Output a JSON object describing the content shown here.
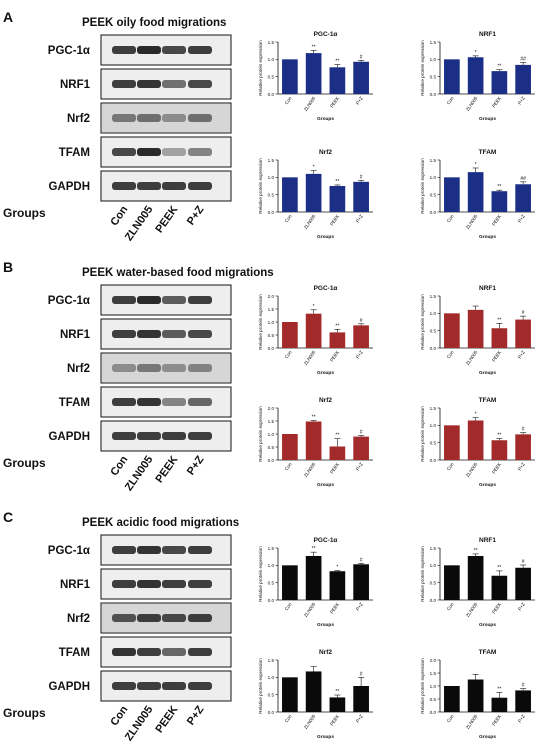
{
  "panels": [
    {
      "letter": "A",
      "title": "PEEK oily food migrations",
      "color": "#1c2f87",
      "blot_rows": [
        "PGC-1α",
        "NRF1",
        "Nrf2",
        "TFAM",
        "GAPDH"
      ],
      "groups_label": "Groups",
      "lanes": [
        "Con",
        "ZLN005",
        "PEEK",
        "P+Z"
      ]
    },
    {
      "letter": "B",
      "title": "PEEK water-based food migrations",
      "color": "#a32a2a",
      "blot_rows": [
        "PGC-1α",
        "NRF1",
        "Nrf2",
        "TFAM",
        "GAPDH"
      ],
      "groups_label": "Groups",
      "lanes": [
        "Con",
        "ZLN005",
        "PEEK",
        "P+Z"
      ]
    },
    {
      "letter": "C",
      "title": "PEEK acidic food migrations",
      "color": "#0a0a0a",
      "blot_rows": [
        "PGC-1α",
        "NRF1",
        "Nrf2",
        "TFAM",
        "GAPDH"
      ],
      "groups_label": "Groups",
      "lanes": [
        "Con",
        "ZLN005",
        "PEEK",
        "P+Z"
      ]
    }
  ],
  "chart_data": [
    {
      "panel": "A",
      "type": "bar",
      "title": "PGC-1α",
      "categories": [
        "Con",
        "ZLN005",
        "PEEK",
        "P+Z"
      ],
      "values": [
        1.0,
        1.18,
        0.77,
        0.93
      ],
      "errors": [
        0.0,
        0.08,
        0.08,
        0.04
      ],
      "marks": [
        "",
        "**",
        "**",
        "#"
      ],
      "xlabel": "Groups",
      "ylabel": "Relative protein expression",
      "ylim": [
        0,
        1.5
      ],
      "yticks": [
        "0.0",
        "0.5",
        "1.0",
        "1.5"
      ],
      "color": "#1c2f87"
    },
    {
      "panel": "A",
      "type": "bar",
      "title": "NRF1",
      "categories": [
        "Con",
        "ZLN005",
        "PEEK",
        "P+Z"
      ],
      "values": [
        1.0,
        1.06,
        0.66,
        0.84
      ],
      "errors": [
        0.0,
        0.04,
        0.04,
        0.07
      ],
      "marks": [
        "",
        "*",
        "**",
        "##"
      ],
      "xlabel": "Groups",
      "ylabel": "Relative protein expression",
      "ylim": [
        0,
        1.5
      ],
      "yticks": [
        "0.0",
        "0.5",
        "1.0",
        "1.5"
      ],
      "color": "#1c2f87"
    },
    {
      "panel": "A",
      "type": "bar",
      "title": "Nrf2",
      "categories": [
        "Con",
        "ZLN005",
        "PEEK",
        "P+Z"
      ],
      "values": [
        1.0,
        1.1,
        0.75,
        0.87
      ],
      "errors": [
        0.0,
        0.09,
        0.03,
        0.04
      ],
      "marks": [
        "",
        "*",
        "**",
        "#"
      ],
      "xlabel": "Groups",
      "ylabel": "Relative protein expression",
      "ylim": [
        0,
        1.5
      ],
      "yticks": [
        "0.0",
        "0.5",
        "1.0",
        "1.5"
      ],
      "color": "#1c2f87"
    },
    {
      "panel": "A",
      "type": "bar",
      "title": "TFAM",
      "categories": [
        "Con",
        "ZLN005",
        "PEEK",
        "P+Z"
      ],
      "values": [
        1.0,
        1.15,
        0.6,
        0.8
      ],
      "errors": [
        0.0,
        0.12,
        0.03,
        0.07
      ],
      "marks": [
        "",
        "*",
        "**",
        "##"
      ],
      "xlabel": "Groups",
      "ylabel": "Relative protein expression",
      "ylim": [
        0,
        1.5
      ],
      "yticks": [
        "0.0",
        "0.5",
        "1.0",
        "1.5"
      ],
      "color": "#1c2f87"
    },
    {
      "panel": "B",
      "type": "bar",
      "title": "PGC-1α",
      "categories": [
        "Con",
        "ZLN005",
        "PEEK",
        "P+Z"
      ],
      "values": [
        1.0,
        1.32,
        0.6,
        0.87
      ],
      "errors": [
        0.0,
        0.15,
        0.12,
        0.06
      ],
      "marks": [
        "",
        "*",
        "**",
        "#"
      ],
      "xlabel": "Groups",
      "ylabel": "Relative protein expression",
      "ylim": [
        0,
        2.0
      ],
      "yticks": [
        "0.0",
        "0.5",
        "1.0",
        "1.5",
        "2.0"
      ],
      "color": "#a32a2a"
    },
    {
      "panel": "B",
      "type": "bar",
      "title": "NRF1",
      "categories": [
        "Con",
        "ZLN005",
        "PEEK",
        "P+Z"
      ],
      "values": [
        1.0,
        1.1,
        0.57,
        0.82
      ],
      "errors": [
        0.0,
        0.11,
        0.14,
        0.1
      ],
      "marks": [
        "",
        "",
        "**",
        "#"
      ],
      "xlabel": "Groups",
      "ylabel": "Relative protein expression",
      "ylim": [
        0,
        1.5
      ],
      "yticks": [
        "0.0",
        "0.5",
        "1.0",
        "1.5"
      ],
      "color": "#a32a2a"
    },
    {
      "panel": "B",
      "type": "bar",
      "title": "Nrf2",
      "categories": [
        "Con",
        "ZLN005",
        "PEEK",
        "P+Z"
      ],
      "values": [
        1.0,
        1.48,
        0.52,
        0.9
      ],
      "errors": [
        0.0,
        0.04,
        0.3,
        0.04
      ],
      "marks": [
        "",
        "**",
        "**",
        "#"
      ],
      "xlabel": "Groups",
      "ylabel": "Relative protein expression",
      "ylim": [
        0,
        2.0
      ],
      "yticks": [
        "0.0",
        "0.5",
        "1.0",
        "1.5",
        "2.0"
      ],
      "color": "#a32a2a"
    },
    {
      "panel": "B",
      "type": "bar",
      "title": "TFAM",
      "categories": [
        "Con",
        "ZLN005",
        "PEEK",
        "P+Z"
      ],
      "values": [
        1.0,
        1.14,
        0.57,
        0.74
      ],
      "errors": [
        0.0,
        0.08,
        0.05,
        0.05
      ],
      "marks": [
        "",
        "*",
        "**",
        "#"
      ],
      "xlabel": "Groups",
      "ylabel": "Relative protein expression",
      "ylim": [
        0,
        1.5
      ],
      "yticks": [
        "0.0",
        "0.5",
        "1.0",
        "1.5"
      ],
      "color": "#a32a2a"
    },
    {
      "panel": "C",
      "type": "bar",
      "title": "PGC-1α",
      "categories": [
        "Con",
        "ZLN005",
        "PEEK",
        "P+Z"
      ],
      "values": [
        1.0,
        1.27,
        0.83,
        1.03
      ],
      "errors": [
        0.0,
        0.11,
        0.02,
        0.03
      ],
      "marks": [
        "",
        "**",
        "*",
        "#"
      ],
      "xlabel": "Groups",
      "ylabel": "Relative protein expression",
      "ylim": [
        0,
        1.5
      ],
      "yticks": [
        "0.0",
        "0.5",
        "1.0",
        "1.5"
      ],
      "color": "#0a0a0a"
    },
    {
      "panel": "C",
      "type": "bar",
      "title": "NRF1",
      "categories": [
        "Con",
        "ZLN005",
        "PEEK",
        "P+Z"
      ],
      "values": [
        1.0,
        1.27,
        0.7,
        0.93
      ],
      "errors": [
        0.0,
        0.06,
        0.14,
        0.08
      ],
      "marks": [
        "",
        "**",
        "**",
        "#"
      ],
      "xlabel": "Groups",
      "ylabel": "Relative protein expression",
      "ylim": [
        0,
        1.5
      ],
      "yticks": [
        "0.0",
        "0.5",
        "1.0",
        "1.5"
      ],
      "color": "#0a0a0a"
    },
    {
      "panel": "C",
      "type": "bar",
      "title": "Nrf2",
      "categories": [
        "Con",
        "ZLN005",
        "PEEK",
        "P+Z"
      ],
      "values": [
        1.0,
        1.17,
        0.42,
        0.75
      ],
      "errors": [
        0.0,
        0.14,
        0.07,
        0.25
      ],
      "marks": [
        "",
        "",
        "**",
        "#"
      ],
      "xlabel": "Groups",
      "ylabel": "Relative protein expression",
      "ylim": [
        0,
        1.5
      ],
      "yticks": [
        "0.0",
        "0.5",
        "1.0",
        "1.5"
      ],
      "color": "#0a0a0a"
    },
    {
      "panel": "C",
      "type": "bar",
      "title": "TFAM",
      "categories": [
        "Con",
        "ZLN005",
        "PEEK",
        "P+Z"
      ],
      "values": [
        1.0,
        1.25,
        0.55,
        0.83
      ],
      "errors": [
        0.0,
        0.2,
        0.2,
        0.07
      ],
      "marks": [
        "",
        "",
        "**",
        "#"
      ],
      "xlabel": "Groups",
      "ylabel": "Relative protein expression",
      "ylim": [
        0,
        2.0
      ],
      "yticks": [
        "0.0",
        "0.5",
        "1.0",
        "1.5",
        "2.0"
      ],
      "color": "#0a0a0a"
    }
  ]
}
